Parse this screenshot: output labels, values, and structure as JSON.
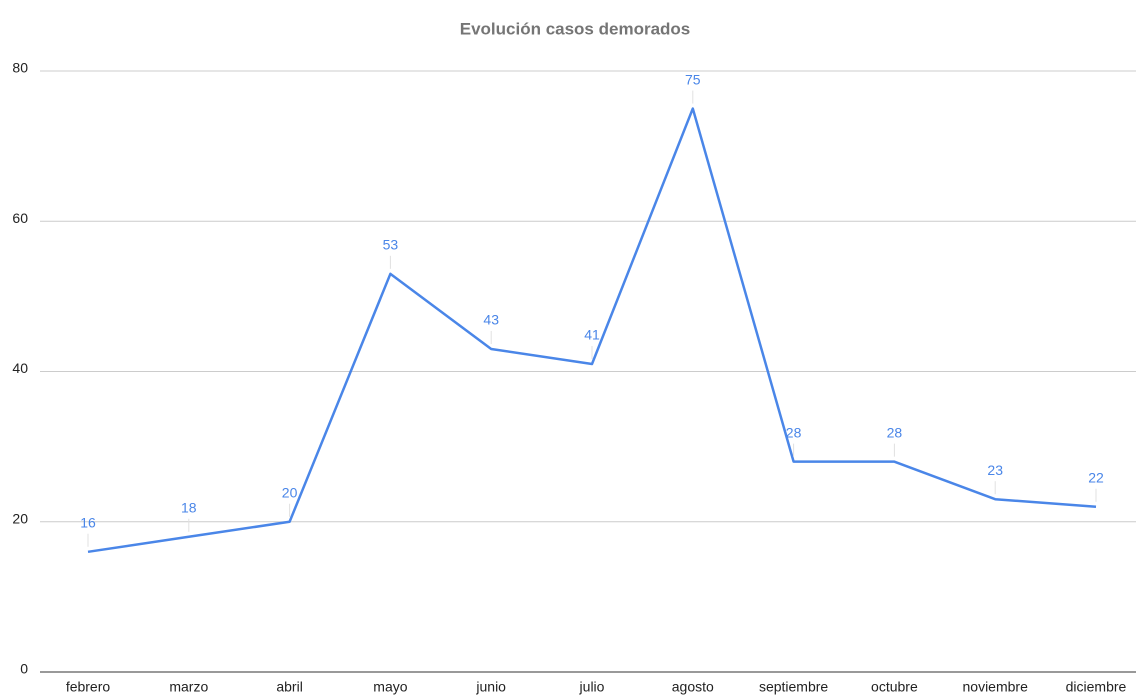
{
  "chart_data": {
    "type": "line",
    "title": "Evolución casos demorados",
    "categories": [
      "febrero",
      "marzo",
      "abril",
      "mayo",
      "junio",
      "julio",
      "agosto",
      "septiembre",
      "octubre",
      "noviembre",
      "diciembre"
    ],
    "series": [
      {
        "name": "casos demorados",
        "color": "#4a86e8",
        "values": [
          16,
          18,
          20,
          53,
          43,
          41,
          75,
          28,
          28,
          23,
          22
        ]
      }
    ],
    "ylim": [
      0,
      80
    ],
    "yticks": [
      0,
      20,
      40,
      60,
      80
    ],
    "grid": true,
    "data_labels": true
  }
}
